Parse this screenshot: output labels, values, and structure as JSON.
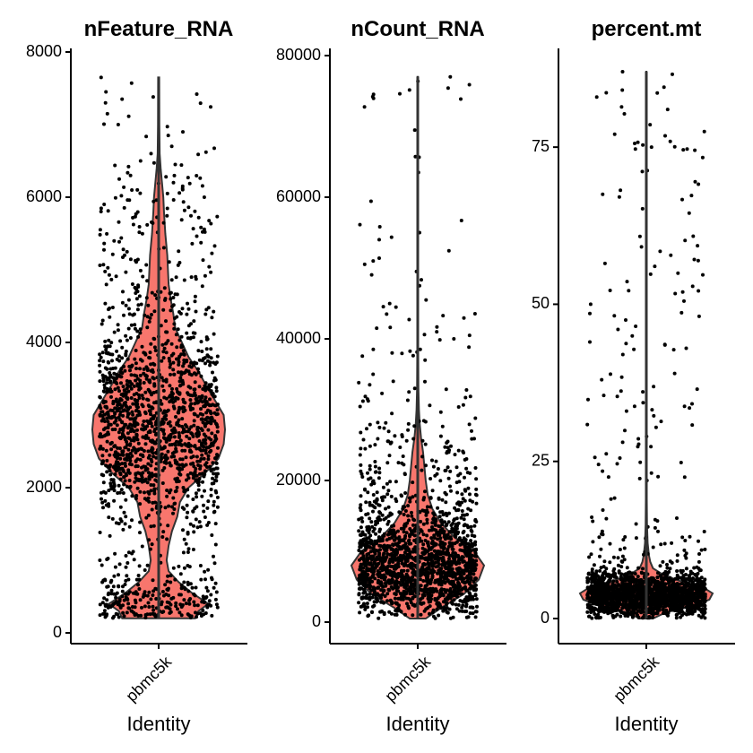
{
  "chart_data": [
    {
      "type": "violin",
      "title": "nFeature_RNA",
      "xlabel": "Identity",
      "categories": [
        "pbmc5k"
      ],
      "ylim": [
        0,
        8000
      ],
      "yticks": [
        0,
        2000,
        4000,
        6000,
        8000
      ],
      "range": [
        200,
        7650
      ],
      "median": 2800,
      "fill": "#F8766D",
      "density": [
        [
          200,
          0.55
        ],
        [
          300,
          0.6
        ],
        [
          400,
          0.75
        ],
        [
          550,
          0.5
        ],
        [
          700,
          0.3
        ],
        [
          850,
          0.15
        ],
        [
          1000,
          0.12
        ],
        [
          1200,
          0.15
        ],
        [
          1400,
          0.2
        ],
        [
          1600,
          0.28
        ],
        [
          1800,
          0.32
        ],
        [
          2000,
          0.45
        ],
        [
          2200,
          0.7
        ],
        [
          2400,
          0.9
        ],
        [
          2600,
          0.98
        ],
        [
          2800,
          1.0
        ],
        [
          3000,
          0.98
        ],
        [
          3200,
          0.85
        ],
        [
          3400,
          0.72
        ],
        [
          3600,
          0.6
        ],
        [
          3800,
          0.45
        ],
        [
          4000,
          0.35
        ],
        [
          4200,
          0.25
        ],
        [
          4400,
          0.22
        ],
        [
          4600,
          0.18
        ],
        [
          4800,
          0.15
        ],
        [
          5000,
          0.14
        ],
        [
          5200,
          0.13
        ],
        [
          5500,
          0.1
        ],
        [
          5800,
          0.08
        ],
        [
          6000,
          0.07
        ],
        [
          6200,
          0.05
        ],
        [
          6400,
          0.03
        ],
        [
          6600,
          0.015
        ],
        [
          7000,
          0.01
        ],
        [
          7650,
          0.008
        ]
      ],
      "outliers": [
        7650,
        7450,
        7420,
        7350,
        7300,
        7150,
        7000,
        6900,
        6850,
        6700,
        6600,
        6500,
        6450,
        6300,
        6250,
        6200,
        6150,
        6100,
        6050,
        6000
      ]
    },
    {
      "type": "violin",
      "title": "nCount_RNA",
      "xlabel": "Identity",
      "categories": [
        "pbmc5k"
      ],
      "ylim": [
        0,
        80000
      ],
      "yticks": [
        0,
        20000,
        40000,
        60000,
        80000
      ],
      "range": [
        500,
        77000
      ],
      "median": 8000,
      "fill": "#F8766D",
      "density": [
        [
          500,
          0.12
        ],
        [
          2000,
          0.35
        ],
        [
          4000,
          0.7
        ],
        [
          6000,
          0.92
        ],
        [
          8000,
          1.0
        ],
        [
          10000,
          0.85
        ],
        [
          12000,
          0.55
        ],
        [
          14000,
          0.35
        ],
        [
          16000,
          0.22
        ],
        [
          18000,
          0.15
        ],
        [
          20000,
          0.12
        ],
        [
          22000,
          0.1
        ],
        [
          24000,
          0.08
        ],
        [
          26000,
          0.05
        ],
        [
          28000,
          0.03
        ],
        [
          30000,
          0.018
        ],
        [
          33000,
          0.01
        ],
        [
          40000,
          0.006
        ],
        [
          77000,
          0.004
        ]
      ],
      "outliers": [
        77000,
        55000,
        54000,
        51000,
        49500,
        45500,
        43500,
        41500,
        41000,
        40500,
        40000,
        38500,
        38000,
        37000,
        35000,
        34000,
        33500,
        33000,
        32500,
        31500
      ]
    },
    {
      "type": "violin",
      "title": "percent.mt",
      "xlabel": "Identity",
      "categories": [
        "pbmc5k"
      ],
      "ylim": [
        0,
        87
      ],
      "yticks": [
        0,
        25,
        50,
        75
      ],
      "range": [
        0,
        87
      ],
      "median": 4,
      "fill": "#F8766D",
      "density": [
        [
          0,
          0.1
        ],
        [
          1,
          0.3
        ],
        [
          2,
          0.7
        ],
        [
          3,
          0.95
        ],
        [
          4,
          1.0
        ],
        [
          5,
          0.85
        ],
        [
          6,
          0.5
        ],
        [
          7,
          0.25
        ],
        [
          8,
          0.1
        ],
        [
          9,
          0.06
        ],
        [
          10,
          0.04
        ],
        [
          12,
          0.02
        ],
        [
          15,
          0.01
        ],
        [
          20,
          0.006
        ],
        [
          40,
          0.004
        ],
        [
          87,
          0.003
        ]
      ],
      "outliers": [
        87,
        81,
        74.5,
        67.5,
        64.5,
        56.5,
        50.5,
        50,
        47.5,
        46.5,
        46,
        44,
        43,
        42,
        39,
        38,
        36.5,
        35.5,
        33.5,
        33
      ]
    }
  ]
}
